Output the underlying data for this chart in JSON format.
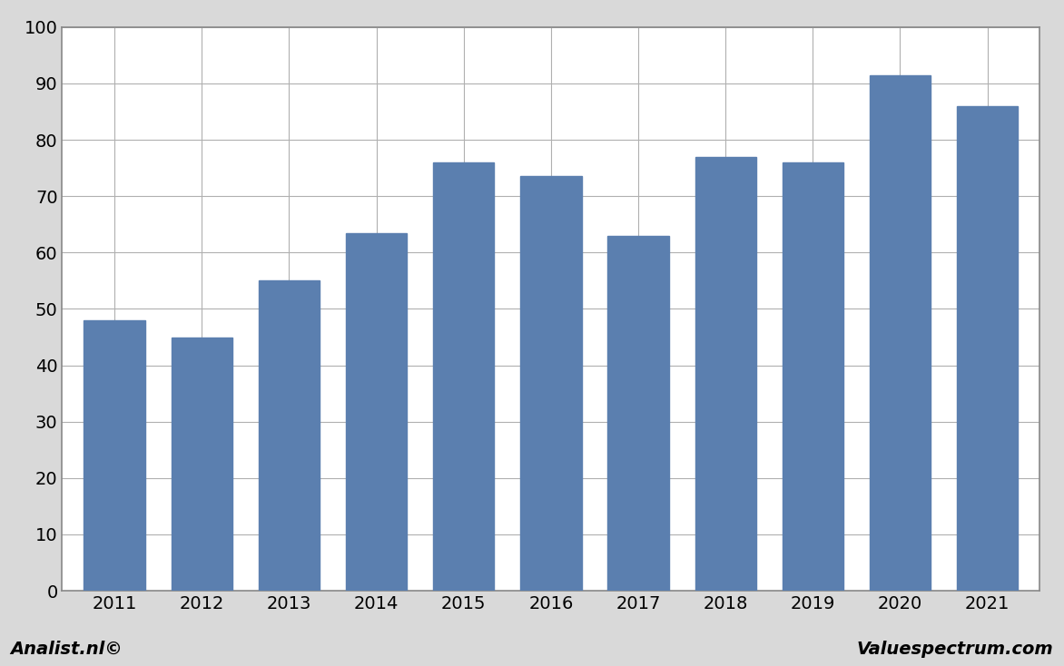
{
  "categories": [
    "2011",
    "2012",
    "2013",
    "2014",
    "2015",
    "2016",
    "2017",
    "2018",
    "2019",
    "2020",
    "2021"
  ],
  "values": [
    48,
    45,
    55,
    63.5,
    76,
    73.5,
    63,
    77,
    76,
    91.5,
    86
  ],
  "bar_color": "#5b7faf",
  "ylim": [
    0,
    100
  ],
  "yticks": [
    0,
    10,
    20,
    30,
    40,
    50,
    60,
    70,
    80,
    90,
    100
  ],
  "background_color": "#d9d9d9",
  "plot_background_color": "#ffffff",
  "grid_color": "#b0b0b0",
  "border_color": "#888888",
  "footer_left": "Analist.nl©",
  "footer_right": "Valuespectrum.com",
  "footer_fontsize": 14,
  "bar_width": 0.7,
  "tick_fontsize": 14
}
